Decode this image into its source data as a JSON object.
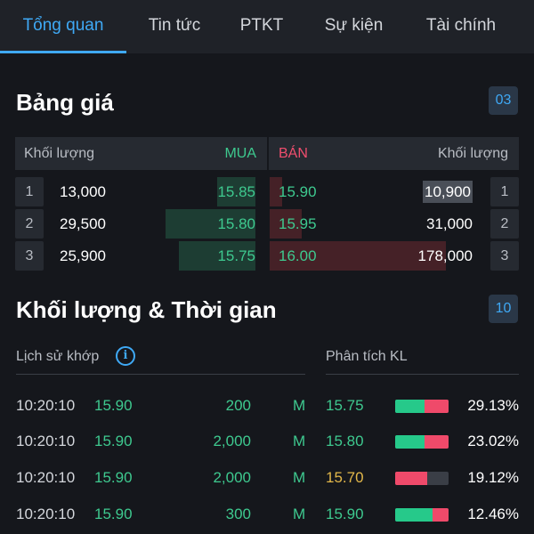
{
  "tabs": [
    "Tổng quan",
    "Tin tức",
    "PTKT",
    "Sự kiện",
    "Tài chính"
  ],
  "orderbook": {
    "title": "Bảng giá",
    "badge": "03",
    "headers": {
      "left": "Khối lượng",
      "mua": "MUA",
      "ban": "BÁN",
      "right": "Khối lượng"
    },
    "rows": [
      {
        "idx": "1",
        "bid_vol": "13,000",
        "bid_price": "15.85",
        "ask_price": "15.90",
        "ask_vol": "10,900",
        "bid_level": 0.12,
        "ask_level": 0.04
      },
      {
        "idx": "2",
        "bid_vol": "29,500",
        "bid_price": "15.80",
        "ask_price": "15.95",
        "ask_vol": "31,000",
        "bid_level": 0.28,
        "ask_level": 0.1
      },
      {
        "idx": "3",
        "bid_vol": "25,900",
        "bid_price": "15.75",
        "ask_price": "16.00",
        "ask_vol": "178,000",
        "bid_level": 0.24,
        "ask_level": 0.55
      }
    ]
  },
  "volume_time": {
    "title": "Khối lượng & Thời gian",
    "badge": "10",
    "history_label": "Lịch sử khớp",
    "analysis_label": "Phân tích KL",
    "info_icon": "info-icon",
    "trades": [
      {
        "time": "10:20:10",
        "price": "15.90",
        "vol": "200",
        "side": "M",
        "an_price": "15.75",
        "an_color": "green",
        "buy": 0.55,
        "sell": 0.45,
        "pct": "29.13%"
      },
      {
        "time": "10:20:10",
        "price": "15.90",
        "vol": "2,000",
        "side": "M",
        "an_price": "15.80",
        "an_color": "green",
        "buy": 0.55,
        "sell": 0.45,
        "pct": "23.02%"
      },
      {
        "time": "10:20:10",
        "price": "15.90",
        "vol": "2,000",
        "side": "M",
        "an_price": "15.70",
        "an_color": "yellow",
        "buy": 0.0,
        "sell": 0.6,
        "pct": "19.12%"
      },
      {
        "time": "10:20:10",
        "price": "15.90",
        "vol": "300",
        "side": "M",
        "an_price": "15.90",
        "an_color": "green",
        "buy": 0.7,
        "sell": 0.3,
        "pct": "12.46%"
      }
    ]
  }
}
